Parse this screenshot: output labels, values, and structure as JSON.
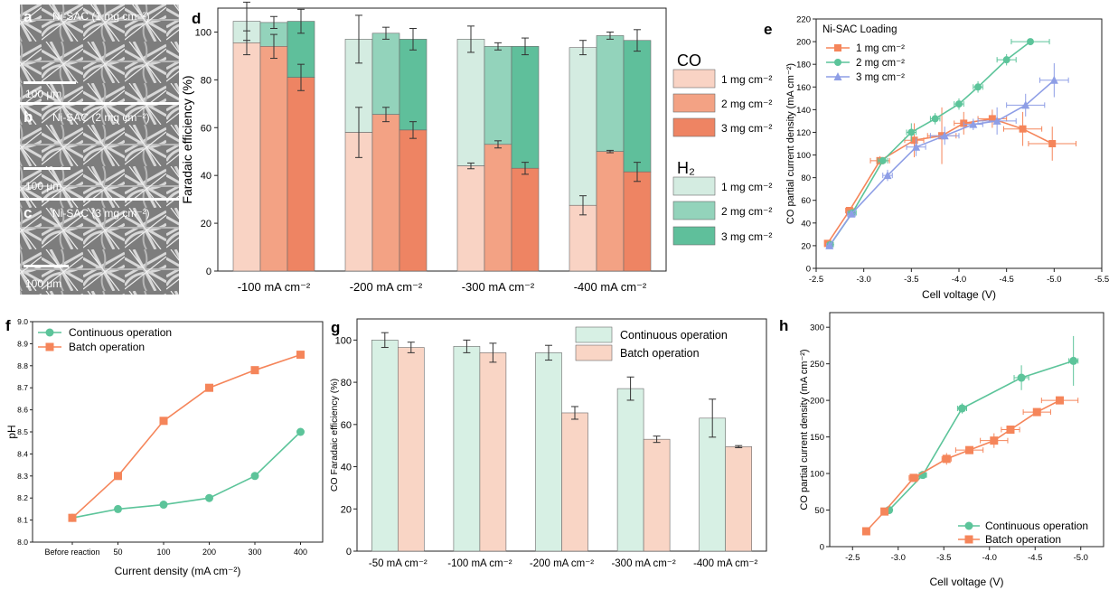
{
  "colors": {
    "co_1": "#f9d3c4",
    "co_2": "#f3a284",
    "co_3": "#ee8463",
    "h2_1": "#d4ece1",
    "h2_2": "#93d3bb",
    "h2_3": "#5fbf9b",
    "orange": "#f5855a",
    "green": "#5cc49a",
    "blue": "#8e9ee6",
    "cont_bar": "#d7f0e4",
    "batch_bar": "#f9d5c5",
    "sem_bg": "#8a8a8a"
  },
  "micrographs": [
    {
      "letter": "a",
      "label": "Ni-SAC (1 mg cm⁻²)",
      "scale": "100 μm"
    },
    {
      "letter": "b",
      "label": "Ni-SAC (2 mg cm⁻²)",
      "scale": "100 μm"
    },
    {
      "letter": "c",
      "label": "Ni-SAC (3 mg cm⁻²)",
      "scale": "100 μm"
    }
  ],
  "chart_data": [
    {
      "panel": "d",
      "type": "bar",
      "stacked": true,
      "categories": [
        "-100 mA cm⁻²",
        "-200 mA cm⁻²",
        "-300 mA cm⁻²",
        "-400 mA cm⁻²"
      ],
      "ylabel": "Faradaic efficiency (%)",
      "ylim": [
        0,
        110
      ],
      "yticks": [
        0,
        20,
        40,
        60,
        80,
        100
      ],
      "legend_groups": [
        {
          "title": "CO",
          "entries": [
            "1 mg cm⁻²",
            "2 mg cm⁻²",
            "3 mg cm⁻²"
          ]
        },
        {
          "title": "H₂",
          "entries": [
            "1 mg cm⁻²",
            "2 mg cm⁻²",
            "3 mg cm⁻²"
          ]
        }
      ],
      "series": [
        {
          "loading": "1 mg cm⁻²",
          "co": [
            95.5,
            58,
            44,
            27.5
          ],
          "co_err": [
            5,
            10.5,
            1.2,
            4
          ],
          "total": [
            104.5,
            97,
            97,
            93.5
          ],
          "total_err": [
            8,
            10,
            5.5,
            3
          ]
        },
        {
          "loading": "2 mg cm⁻²",
          "co": [
            94,
            65.5,
            53,
            50
          ],
          "co_err": [
            5,
            3,
            1.5,
            0.5
          ],
          "total": [
            104,
            99.5,
            94,
            98.5
          ],
          "total_err": [
            2.5,
            2.5,
            1.5,
            1.5
          ]
        },
        {
          "loading": "3 mg cm⁻²",
          "co": [
            81,
            59,
            43,
            41.5
          ],
          "co_err": [
            5.5,
            3.5,
            2.5,
            4
          ],
          "total": [
            104.5,
            97,
            94,
            96.5
          ],
          "total_err": [
            5,
            4.5,
            3.5,
            4.5
          ]
        }
      ]
    },
    {
      "panel": "e",
      "type": "line",
      "xlabel": "Cell voltage (V)",
      "ylabel": "CO partial current density (mA cm⁻²)",
      "xlim": [
        -2.5,
        -5.5
      ],
      "xticks": [
        -2.5,
        -3.0,
        -3.5,
        -4.0,
        -4.5,
        -5.0,
        -5.5
      ],
      "ylim": [
        0,
        220
      ],
      "yticks": [
        0,
        20,
        40,
        60,
        80,
        100,
        120,
        140,
        160,
        180,
        200,
        220
      ],
      "legend_title": "Ni-SAC Loading",
      "series": [
        {
          "name": "1 mg cm⁻²",
          "marker": "square",
          "x": [
            -2.62,
            -2.85,
            -3.17,
            -3.53,
            -3.82,
            -4.05,
            -4.35,
            -4.67,
            -4.98
          ],
          "y": [
            22,
            51,
            95,
            113,
            117,
            128,
            132,
            123,
            110
          ],
          "xerr": [
            0.03,
            0.04,
            0.1,
            0.1,
            0.15,
            0.1,
            0.15,
            0.2,
            0.25
          ],
          "yerr": [
            2,
            2,
            4,
            15,
            25,
            10,
            8,
            15,
            15
          ]
        },
        {
          "name": "2 mg cm⁻²",
          "marker": "circle",
          "x": [
            -2.65,
            -2.88,
            -3.2,
            -3.5,
            -3.75,
            -4.0,
            -4.2,
            -4.5,
            -4.75
          ],
          "y": [
            21,
            49,
            95,
            120,
            132,
            145,
            160,
            184,
            200
          ],
          "xerr": [
            0.03,
            0.04,
            0.05,
            0.05,
            0.05,
            0.05,
            0.05,
            0.1,
            0.2
          ],
          "yerr": [
            2,
            2,
            3,
            8,
            5,
            5,
            5,
            5,
            2
          ]
        },
        {
          "name": "3 mg cm⁻²",
          "marker": "triangle",
          "x": [
            -2.64,
            -2.87,
            -3.25,
            -3.55,
            -3.85,
            -4.15,
            -4.4,
            -4.7,
            -5.0
          ],
          "y": [
            20,
            48,
            82,
            107,
            117,
            127,
            130,
            144,
            166
          ],
          "xerr": [
            0.03,
            0.04,
            0.05,
            0.1,
            0.15,
            0.1,
            0.2,
            0.2,
            0.15
          ],
          "yerr": [
            2,
            2,
            5,
            8,
            8,
            5,
            12,
            10,
            15
          ]
        }
      ]
    },
    {
      "panel": "f",
      "type": "line",
      "xlabel": "Current density (mA cm⁻²)",
      "ylabel": "pH",
      "categories": [
        "Before reaction",
        "50",
        "100",
        "200",
        "300",
        "400"
      ],
      "ylim": [
        8.0,
        9.0
      ],
      "yticks": [
        8.0,
        8.1,
        8.2,
        8.3,
        8.4,
        8.5,
        8.6,
        8.7,
        8.8,
        8.9,
        9.0
      ],
      "series": [
        {
          "name": "Continuous operation",
          "marker": "circle",
          "values": [
            8.11,
            8.15,
            8.17,
            8.2,
            8.3,
            8.5
          ]
        },
        {
          "name": "Batch operation",
          "marker": "square",
          "values": [
            8.11,
            8.3,
            8.55,
            8.7,
            8.78,
            8.85
          ]
        }
      ]
    },
    {
      "panel": "g",
      "type": "bar",
      "ylabel": "CO Faradaic efficiency (%)",
      "categories": [
        "-50 mA cm⁻²",
        "-100 mA cm⁻²",
        "-200 mA cm⁻²",
        "-300 mA cm⁻²",
        "-400 mA cm⁻²"
      ],
      "ylim": [
        0,
        110
      ],
      "yticks": [
        0,
        20,
        40,
        60,
        80,
        100
      ],
      "series": [
        {
          "name": "Continuous operation",
          "values": [
            100,
            97,
            94,
            77,
            63
          ],
          "err": [
            3.5,
            3,
            3.5,
            5.5,
            9
          ]
        },
        {
          "name": "Batch operation",
          "values": [
            96.5,
            94,
            65.5,
            53,
            49.5
          ],
          "err": [
            2.5,
            4.5,
            3,
            1.5,
            0.5
          ]
        }
      ]
    },
    {
      "panel": "h",
      "type": "line",
      "xlabel": "Cell voltage (V)",
      "ylabel": "CO partial current density (mA cm⁻²)",
      "xlim": [
        -2.25,
        -5.25
      ],
      "xticks": [
        -2.5,
        -3.0,
        -3.5,
        -4.0,
        -4.5,
        -5.0
      ],
      "ylim": [
        0,
        320
      ],
      "yticks": [
        0,
        50,
        100,
        150,
        200,
        250,
        300
      ],
      "series": [
        {
          "name": "Continuous operation",
          "marker": "circle",
          "x": [
            -2.9,
            -3.27,
            -3.7,
            -4.35,
            -4.92
          ],
          "y": [
            50,
            98,
            189,
            231,
            254
          ],
          "xerr": [
            0.03,
            0.04,
            0.05,
            0.08,
            0.05
          ],
          "yerr": [
            2,
            3,
            7,
            17,
            34
          ]
        },
        {
          "name": "Batch operation",
          "marker": "square",
          "x": [
            -2.65,
            -2.85,
            -3.17,
            -3.53,
            -3.78,
            -4.05,
            -4.23,
            -4.52,
            -4.77
          ],
          "y": [
            21,
            48,
            94,
            120,
            132,
            145,
            160,
            184,
            200
          ],
          "xerr": [
            0.02,
            0.03,
            0.05,
            0.05,
            0.15,
            0.15,
            0.1,
            0.15,
            0.2
          ],
          "yerr": [
            2,
            2,
            3,
            8,
            5,
            10,
            5,
            5,
            2
          ]
        }
      ]
    }
  ]
}
